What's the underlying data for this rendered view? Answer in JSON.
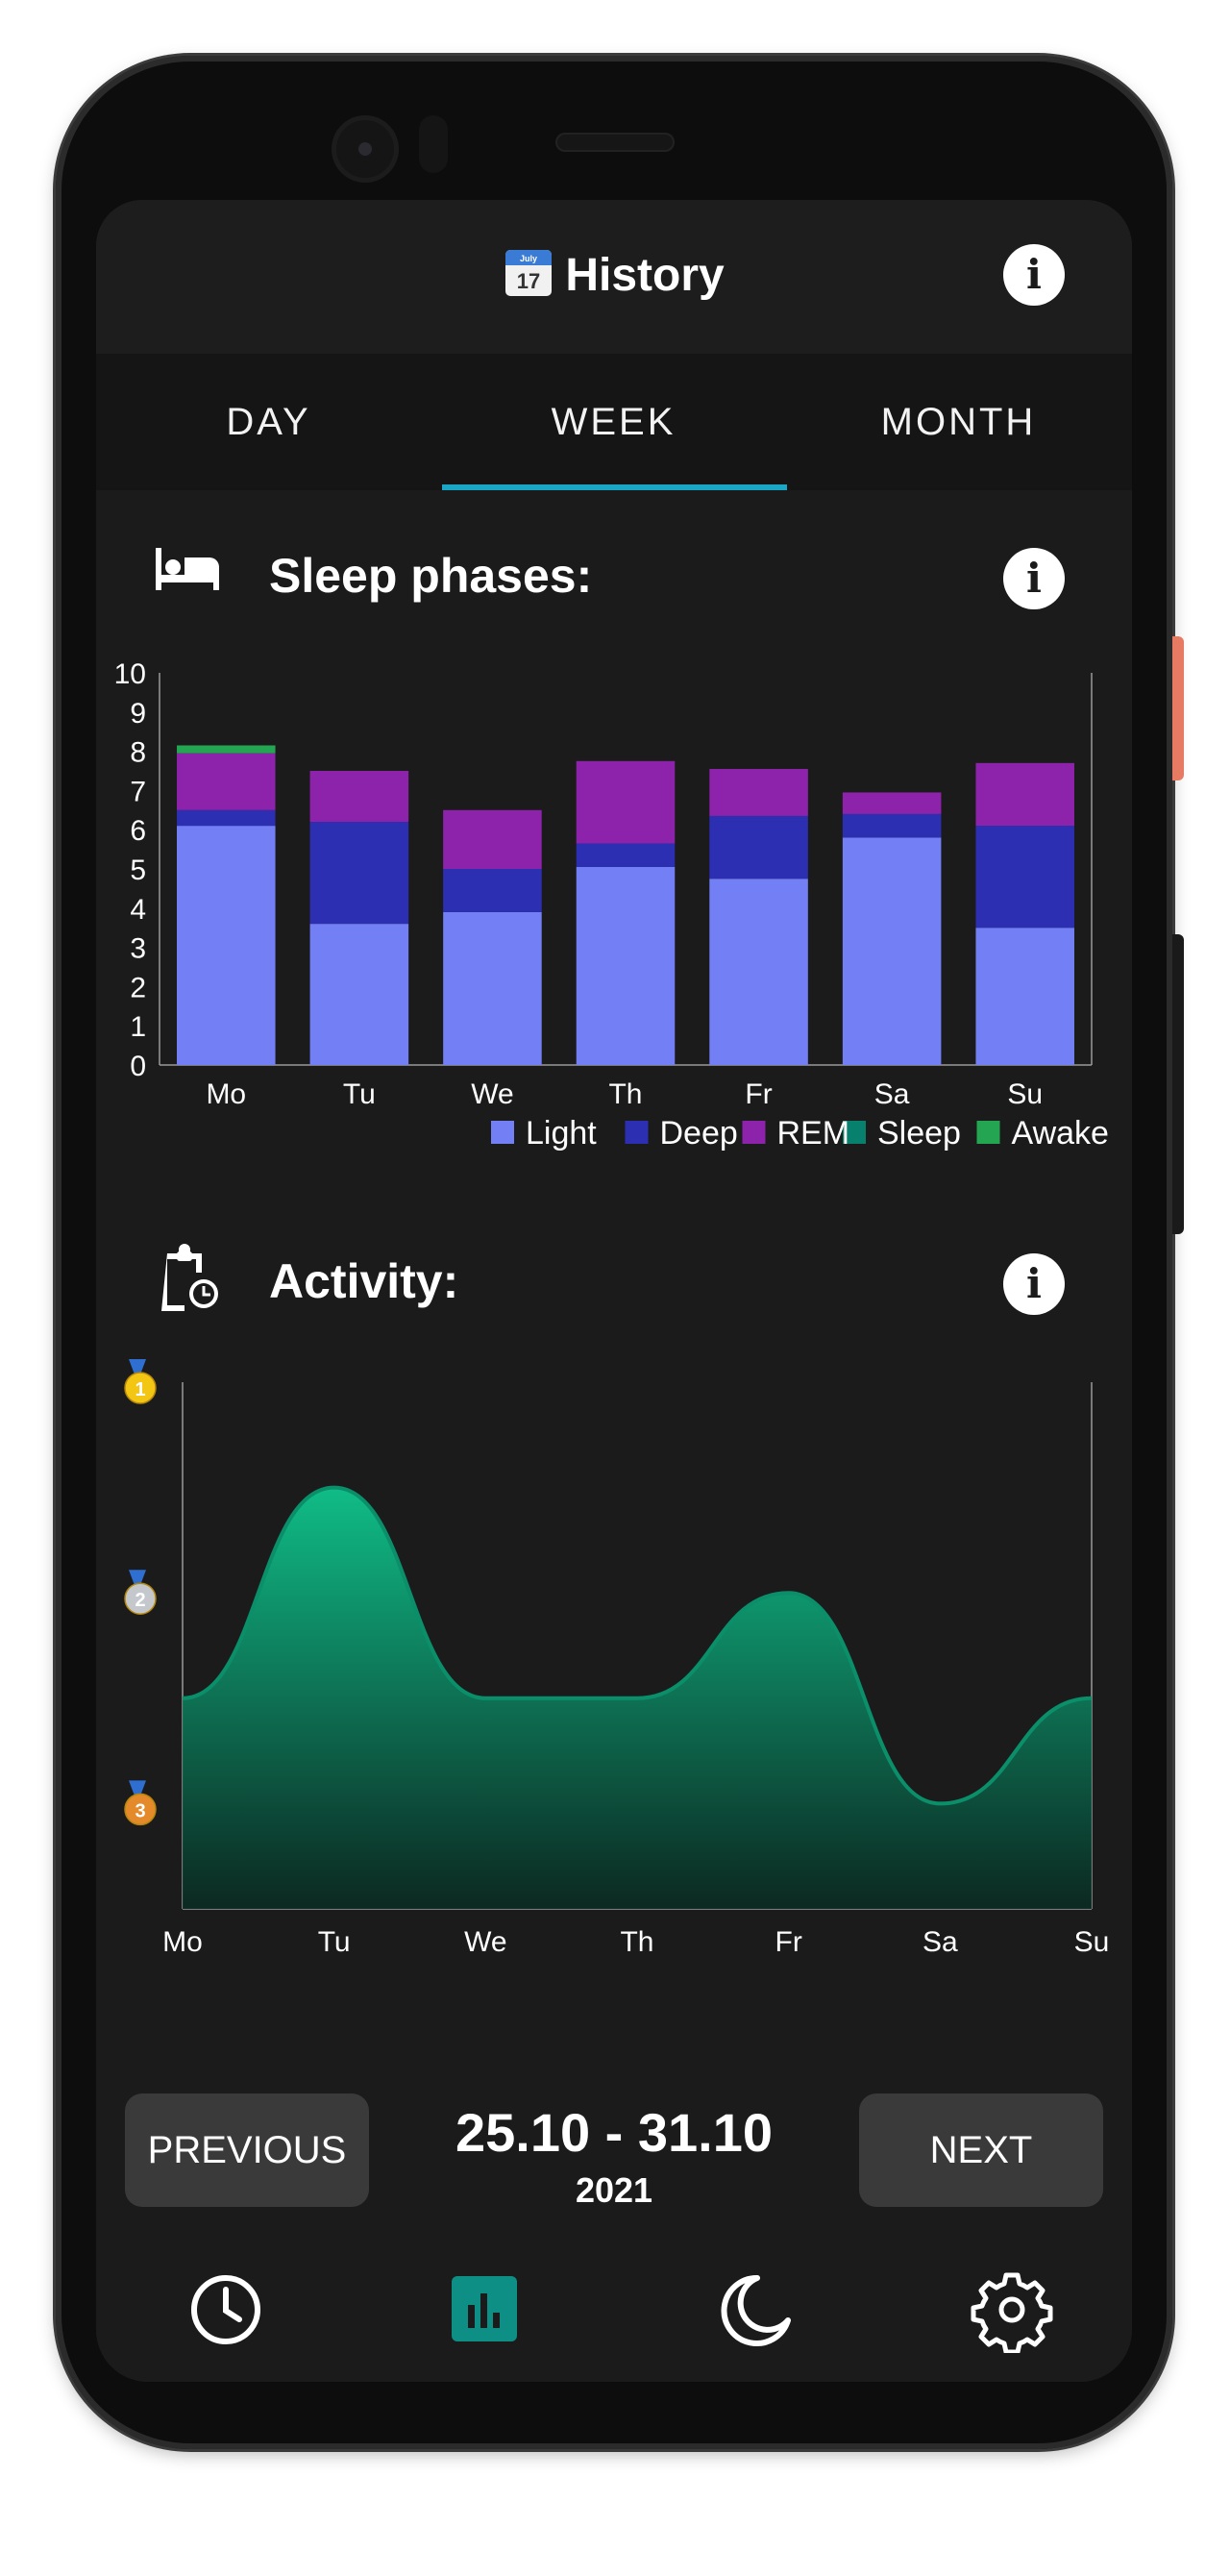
{
  "app": {
    "title": "History"
  },
  "tabs": [
    {
      "label": "DAY"
    },
    {
      "label": "WEEK"
    },
    {
      "label": "MONTH"
    }
  ],
  "active_tab": "WEEK",
  "sleep_section": {
    "title": "Sleep phases:",
    "icon": "bed-icon"
  },
  "activity_section": {
    "title": "Activity:",
    "icon": "clipboard-clock-icon"
  },
  "colors": {
    "light": "#737ff4",
    "deep": "#2d2fb3",
    "rem": "#8d23aa",
    "sleep": "#07806d",
    "awake": "#23a552",
    "accent": "#1aa7c5",
    "activity": "#0fc58c"
  },
  "chart_data": [
    {
      "type": "bar",
      "stacked": true,
      "categories": [
        "Mo",
        "Tu",
        "We",
        "Th",
        "Fr",
        "Sa",
        "Su"
      ],
      "series": [
        {
          "name": "Light",
          "values": [
            6.1,
            3.6,
            3.9,
            5.05,
            4.75,
            5.8,
            3.5
          ]
        },
        {
          "name": "Deep",
          "values": [
            0.4,
            2.6,
            1.1,
            0.6,
            1.6,
            0.6,
            2.6
          ]
        },
        {
          "name": "REM",
          "values": [
            1.45,
            1.3,
            1.5,
            2.1,
            1.2,
            0.55,
            1.6
          ]
        },
        {
          "name": "Sleep",
          "values": [
            0,
            0,
            0,
            0,
            0,
            0,
            0
          ]
        },
        {
          "name": "Awake",
          "values": [
            0.2,
            0,
            0,
            0,
            0,
            0,
            0
          ]
        }
      ],
      "ylim": [
        0,
        10
      ],
      "yticks": [
        0,
        1,
        2,
        3,
        4,
        5,
        6,
        7,
        8,
        9,
        10
      ],
      "legend": "bottom-right"
    },
    {
      "type": "area",
      "categories": [
        "Mo",
        "Tu",
        "We",
        "Th",
        "Fr",
        "Sa",
        "Su"
      ],
      "values": [
        1.0,
        2.0,
        1.0,
        1.0,
        1.5,
        0.5,
        1.0
      ],
      "ylim": [
        0,
        2.5
      ],
      "y_markers": [
        "gold-medal-icon",
        "silver-medal-icon",
        "bronze-medal-icon"
      ]
    }
  ],
  "navigation": {
    "previous_label": "PREVIOUS",
    "next_label": "NEXT",
    "date_range": "25.10 - 31.10",
    "year": "2021"
  },
  "bottom_nav": [
    {
      "icon": "clock-icon"
    },
    {
      "icon": "bar-chart-icon",
      "active": true
    },
    {
      "icon": "moon-icon"
    },
    {
      "icon": "gear-icon"
    }
  ]
}
